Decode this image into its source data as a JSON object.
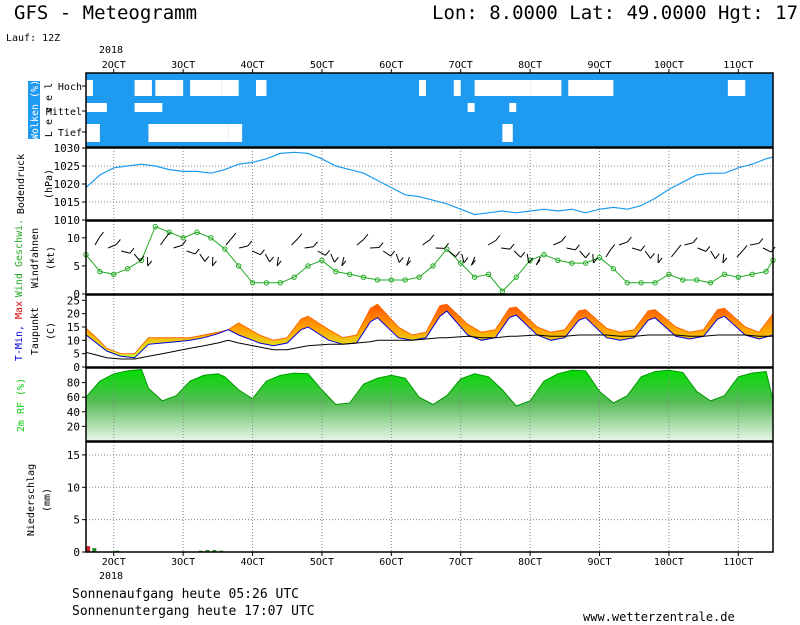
{
  "header": {
    "model_title": "GFS - Meteogramm",
    "location": "Lon: 8.0000 Lat: 49.0000 Hgt: 17",
    "run_label": "Lauf: 12Z"
  },
  "footer": {
    "sunrise": "Sonnenaufgang heute 05:26 UTC",
    "sunset": "Sonnenuntergang heute 17:07 UTC",
    "source": "www.wetterzentrale.de"
  },
  "colors": {
    "cloud_sky": "#1e9bf0",
    "pressure_line": "#1e9bf0",
    "wind_line": "#22aa22",
    "tmin_line": "#0000dd",
    "tmax_fill": "#ff6600",
    "rh_fill": "#11cc11",
    "precip_bar": "#228822"
  },
  "chart_data": [
    {
      "type": "heatmap",
      "panel": "Wolken",
      "ylabel": "Wolken (%)",
      "ylabel2": "L e v e l",
      "levels": [
        "Hoch",
        "Mittel",
        "Tief"
      ],
      "x_start": 1.6,
      "x_end": 11.5,
      "years": [
        "2018",
        "2018"
      ],
      "months": "OCT",
      "day_ticks": [
        2,
        3,
        4,
        5,
        6,
        7,
        8,
        9,
        10,
        11
      ],
      "day_labels": [
        "2OCT",
        "3OCT",
        "4OCT",
        "5OCT",
        "6OCT",
        "7OCT",
        "8OCT",
        "9OCT",
        "10OCT",
        "11OCT"
      ],
      "clouds": [
        {
          "level": "Hoch",
          "x0": 1.6,
          "x1": 1.7
        },
        {
          "level": "Hoch",
          "x0": 2.3,
          "x1": 2.55
        },
        {
          "level": "Hoch",
          "x0": 2.6,
          "x1": 3.0
        },
        {
          "level": "Hoch",
          "x0": 3.1,
          "x1": 3.55
        },
        {
          "level": "Hoch",
          "x0": 3.55,
          "x1": 3.8
        },
        {
          "level": "Hoch",
          "x0": 4.05,
          "x1": 4.2
        },
        {
          "level": "Hoch",
          "x0": 6.4,
          "x1": 6.5
        },
        {
          "level": "Hoch",
          "x0": 6.9,
          "x1": 7.0
        },
        {
          "level": "Hoch",
          "x0": 7.2,
          "x1": 8.0
        },
        {
          "level": "Hoch",
          "x0": 8.0,
          "x1": 8.45
        },
        {
          "level": "Hoch",
          "x0": 8.55,
          "x1": 9.2
        },
        {
          "level": "Hoch",
          "x0": 10.85,
          "x1": 11.1
        },
        {
          "level": "Mittel",
          "x0": 1.6,
          "x1": 1.9
        },
        {
          "level": "Mittel",
          "x0": 2.3,
          "x1": 2.7
        },
        {
          "level": "Mittel",
          "x0": 7.1,
          "x1": 7.2
        },
        {
          "level": "Mittel",
          "x0": 7.7,
          "x1": 7.8
        },
        {
          "level": "Tief",
          "x0": 1.6,
          "x1": 1.8
        },
        {
          "level": "Tief",
          "x0": 2.5,
          "x1": 3.65
        },
        {
          "level": "Tief",
          "x0": 3.65,
          "x1": 3.85
        },
        {
          "level": "Tief",
          "x0": 7.6,
          "x1": 7.75
        }
      ]
    },
    {
      "type": "line",
      "panel": "Bodendruck",
      "ylabel": "Bodendruck",
      "yunit": "(hPa)",
      "ylim": [
        1010,
        1030
      ],
      "yticks": [
        1010,
        1015,
        1020,
        1025,
        1030
      ],
      "x": [
        1.6,
        1.8,
        2.0,
        2.2,
        2.4,
        2.6,
        2.8,
        3.0,
        3.2,
        3.4,
        3.6,
        3.8,
        4.0,
        4.2,
        4.4,
        4.6,
        4.8,
        5.0,
        5.2,
        5.4,
        5.6,
        5.8,
        6.0,
        6.2,
        6.4,
        6.6,
        6.8,
        7.0,
        7.2,
        7.4,
        7.6,
        7.8,
        8.0,
        8.2,
        8.4,
        8.6,
        8.8,
        9.0,
        9.2,
        9.4,
        9.6,
        9.8,
        10.0,
        10.2,
        10.4,
        10.6,
        10.8,
        11.0,
        11.2,
        11.4,
        11.5
      ],
      "values": [
        1019,
        1022.5,
        1024.5,
        1025,
        1025.5,
        1025,
        1024,
        1023.5,
        1023.5,
        1023,
        1024,
        1025.5,
        1026,
        1027,
        1028.5,
        1028.8,
        1028.5,
        1027,
        1025,
        1024,
        1023,
        1021,
        1019,
        1017,
        1016.5,
        1015.5,
        1014.5,
        1013,
        1011.5,
        1012,
        1012.5,
        1012,
        1012.5,
        1013,
        1012.5,
        1013,
        1012,
        1013,
        1013.5,
        1013,
        1014,
        1016,
        1018.5,
        1020.5,
        1022.5,
        1023,
        1023,
        1024.5,
        1025.5,
        1027,
        1027.5
      ]
    },
    {
      "type": "line",
      "panel": "Wind",
      "ylabel": "Wind Geschwi.",
      "ylabel2": "Windfahnen",
      "yunit": "(kt)",
      "ylim": [
        0,
        13
      ],
      "yticks": [
        0,
        5,
        10
      ],
      "x": [
        1.6,
        1.8,
        2.0,
        2.2,
        2.4,
        2.6,
        2.8,
        3.0,
        3.2,
        3.4,
        3.6,
        3.8,
        4.0,
        4.2,
        4.4,
        4.6,
        4.8,
        5.0,
        5.2,
        5.4,
        5.6,
        5.8,
        6.0,
        6.2,
        6.4,
        6.6,
        6.8,
        7.0,
        7.2,
        7.4,
        7.6,
        7.8,
        8.0,
        8.2,
        8.4,
        8.6,
        8.8,
        9.0,
        9.2,
        9.4,
        9.6,
        9.8,
        10.0,
        10.2,
        10.4,
        10.6,
        10.8,
        11.0,
        11.2,
        11.4,
        11.5
      ],
      "values": [
        7,
        4,
        3.5,
        4.5,
        6,
        12,
        11,
        10,
        11,
        10,
        8,
        5,
        2,
        2,
        2,
        3,
        5,
        6,
        4,
        3.5,
        3,
        2.5,
        2.5,
        2.5,
        3,
        5,
        8,
        5.5,
        3,
        3.5,
        0.5,
        3,
        6,
        7,
        6,
        5.5,
        5.5,
        6.5,
        4.5,
        2,
        2,
        2,
        3.5,
        2.5,
        2.5,
        2,
        3.5,
        3,
        3.5,
        4,
        6
      ]
    },
    {
      "type": "area",
      "panel": "Temperatur",
      "ylabel": "T-Min, Max",
      "ylabel2": "Taupunkt",
      "yunit": "(C)",
      "ylim": [
        0,
        27
      ],
      "yticks": [
        0,
        5,
        10,
        15,
        20,
        25
      ],
      "x": [
        1.6,
        1.75,
        1.9,
        2.1,
        2.3,
        2.5,
        2.7,
        2.9,
        3.1,
        3.3,
        3.5,
        3.65,
        3.8,
        4.1,
        4.3,
        4.5,
        4.7,
        4.8,
        5.1,
        5.3,
        5.5,
        5.7,
        5.8,
        6.1,
        6.3,
        6.5,
        6.7,
        6.8,
        7.1,
        7.3,
        7.5,
        7.7,
        7.8,
        8.1,
        8.3,
        8.5,
        8.7,
        8.8,
        9.1,
        9.3,
        9.5,
        9.7,
        9.8,
        10.1,
        10.3,
        10.5,
        10.7,
        10.8,
        11.1,
        11.3,
        11.5
      ],
      "series": [
        {
          "name": "T-Min",
          "values": [
            12,
            9,
            6,
            4,
            3.5,
            8.5,
            9,
            9.5,
            10,
            11,
            12.5,
            14,
            12,
            9,
            8,
            9,
            14,
            15,
            10,
            8.5,
            9,
            17,
            18.5,
            11,
            10,
            11,
            19,
            21,
            12,
            10,
            11,
            18.5,
            19.5,
            12,
            10,
            11,
            17.5,
            18.5,
            11,
            10,
            11,
            17.5,
            18.5,
            11.5,
            10.5,
            11.5,
            18,
            19,
            12,
            10.5,
            12
          ]
        },
        {
          "name": "Max",
          "values": [
            14.5,
            11,
            7,
            5,
            5,
            11,
            11,
            11,
            11,
            12,
            13,
            14,
            16.5,
            12,
            10,
            11,
            18,
            19,
            14,
            11,
            12,
            22,
            23.5,
            15,
            12,
            13,
            23,
            23.5,
            16,
            13,
            14,
            22,
            22.5,
            15,
            13,
            14,
            21,
            21.5,
            14.5,
            13,
            14,
            21,
            21.5,
            15,
            13,
            14,
            21.5,
            22,
            15,
            13,
            20
          ]
        },
        {
          "name": "Taupunkt",
          "values": [
            5.5,
            4.5,
            3.5,
            3,
            3,
            4,
            5,
            6,
            7,
            8,
            9,
            10,
            9,
            7.5,
            6.5,
            6.5,
            7.5,
            8,
            8.5,
            8.5,
            9,
            9.5,
            10,
            10,
            10,
            10.5,
            11,
            11,
            11.5,
            11,
            11,
            11.5,
            11.5,
            12,
            11.5,
            11.5,
            12,
            12,
            12,
            11.5,
            11.5,
            12,
            12,
            12,
            11.5,
            11.5,
            12,
            12,
            12,
            11.5,
            11.5
          ]
        }
      ]
    },
    {
      "type": "area",
      "panel": "Feuchte",
      "ylabel": "2m RF (%)",
      "ylim": [
        0,
        100
      ],
      "yticks": [
        20,
        40,
        60,
        80
      ],
      "x": [
        1.6,
        1.8,
        2.0,
        2.2,
        2.4,
        2.5,
        2.7,
        2.9,
        3.1,
        3.3,
        3.5,
        3.6,
        3.8,
        4.0,
        4.2,
        4.4,
        4.6,
        4.8,
        5.0,
        5.2,
        5.4,
        5.6,
        5.8,
        6.0,
        6.2,
        6.4,
        6.6,
        6.8,
        7.0,
        7.2,
        7.4,
        7.6,
        7.8,
        8.0,
        8.2,
        8.4,
        8.6,
        8.8,
        9.0,
        9.2,
        9.4,
        9.6,
        9.8,
        10.0,
        10.2,
        10.4,
        10.6,
        10.8,
        11.0,
        11.2,
        11.4,
        11.5
      ],
      "values": [
        60,
        82,
        92,
        96,
        98,
        72,
        55,
        62,
        82,
        90,
        92,
        88,
        70,
        58,
        82,
        90,
        93,
        92,
        70,
        50,
        52,
        78,
        86,
        90,
        86,
        60,
        50,
        62,
        85,
        92,
        88,
        70,
        48,
        55,
        82,
        92,
        97,
        96,
        68,
        52,
        62,
        88,
        95,
        97,
        94,
        68,
        55,
        62,
        88,
        93,
        95,
        56
      ]
    },
    {
      "type": "bar",
      "panel": "Niederschlag",
      "ylabel": "Niederschlag",
      "yunit": "(mm)",
      "ylim": [
        0,
        17
      ],
      "yticks": [
        0,
        5,
        10,
        15
      ],
      "x": [
        1.63,
        1.72,
        2.05,
        3.25,
        3.35,
        3.45,
        3.55
      ],
      "values": [
        0.9,
        0.6,
        0.2,
        0.2,
        0.3,
        0.3,
        0.2
      ]
    }
  ]
}
